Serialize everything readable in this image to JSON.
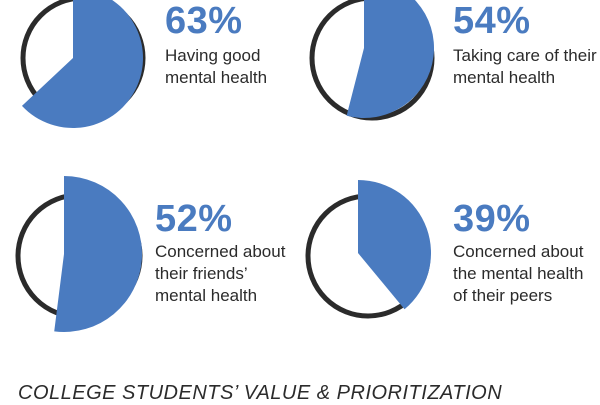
{
  "accent_color": "#4a7bc0",
  "ring_color": "#2b2b2b",
  "footer_text": "COLLEGE STUDENTS’ VALUE & PRIORITIZATION",
  "chart_data": {
    "type": "pie",
    "items": [
      {
        "value": 63,
        "percent_label": "63%",
        "lines": [
          "Having good",
          "mental health"
        ]
      },
      {
        "value": 54,
        "percent_label": "54%",
        "lines": [
          "Taking care of their",
          "mental health"
        ]
      },
      {
        "value": 52,
        "percent_label": "52%",
        "lines": [
          "Concerned about",
          "their friends’",
          "mental health"
        ]
      },
      {
        "value": 39,
        "percent_label": "39%",
        "lines": [
          "Concerned about",
          "the mental health",
          "of their peers"
        ]
      }
    ]
  }
}
